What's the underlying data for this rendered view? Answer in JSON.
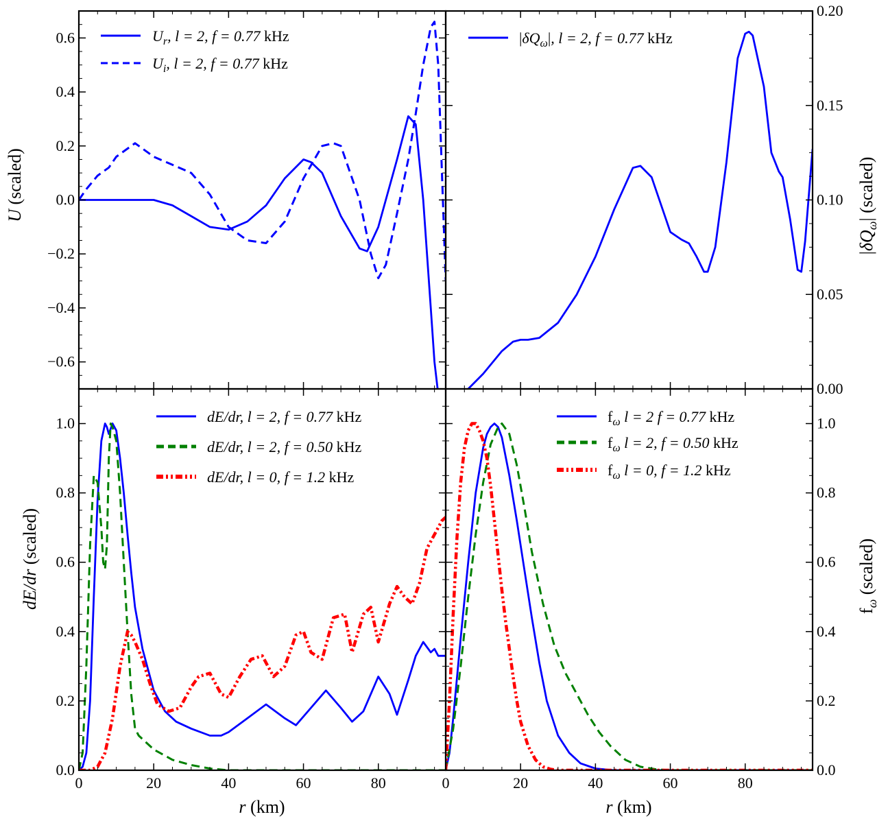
{
  "chart_data": [
    {
      "id": "top-left",
      "type": "line",
      "xlim": [
        0,
        98
      ],
      "ylim": [
        -0.7,
        0.7
      ],
      "xticks": [],
      "yticks": [
        -0.6,
        -0.4,
        -0.2,
        0.0,
        0.2,
        0.4,
        0.6
      ],
      "ytick_labels": [
        "−0.6",
        "−0.4",
        "−0.2",
        "0.0",
        "0.2",
        "0.4",
        "0.6"
      ],
      "ylabel": "U (scaled)",
      "ylabel_side": "left",
      "legend_position": "upper-left",
      "series": [
        {
          "name": "U_r, l = 2, f = 0.77 kHz",
          "color": "#0000ff",
          "dash": "solid",
          "x": [
            0,
            5,
            10,
            15,
            20,
            25,
            30,
            35,
            40,
            45,
            50,
            55,
            60,
            62,
            65,
            70,
            75,
            77,
            80,
            85,
            88,
            90,
            92,
            94,
            95,
            96
          ],
          "y": [
            0.0,
            0.0,
            0.0,
            0.0,
            0.0,
            -0.02,
            -0.06,
            -0.1,
            -0.11,
            -0.08,
            -0.02,
            0.08,
            0.15,
            0.14,
            0.1,
            -0.06,
            -0.18,
            -0.19,
            -0.1,
            0.15,
            0.31,
            0.28,
            0.0,
            -0.4,
            -0.6,
            -0.72
          ]
        },
        {
          "name": "U_i, l = 2, f = 0.77 kHz",
          "color": "#0000ff",
          "dash": "dashed",
          "x": [
            0,
            2,
            5,
            8,
            10,
            15,
            20,
            25,
            30,
            35,
            40,
            45,
            50,
            55,
            60,
            65,
            68,
            70,
            75,
            78,
            80,
            82,
            85,
            88,
            90,
            92,
            94,
            95,
            96,
            97,
            98
          ],
          "y": [
            0.0,
            0.04,
            0.09,
            0.12,
            0.16,
            0.21,
            0.16,
            0.13,
            0.1,
            0.02,
            -0.1,
            -0.15,
            -0.16,
            -0.08,
            0.08,
            0.2,
            0.21,
            0.2,
            0.0,
            -0.2,
            -0.29,
            -0.24,
            -0.05,
            0.15,
            0.32,
            0.5,
            0.64,
            0.66,
            0.5,
            0.1,
            -0.3
          ]
        }
      ]
    },
    {
      "id": "top-right",
      "type": "line",
      "xlim": [
        0,
        98
      ],
      "ylim": [
        0.0,
        0.2
      ],
      "xticks": [],
      "yticks": [
        0.0,
        0.05,
        0.1,
        0.15,
        0.2
      ],
      "ytick_labels": [
        "0.00",
        "0.05",
        "0.10",
        "0.15",
        "0.20"
      ],
      "ylabel": "|δQω| (scaled)",
      "ylabel_side": "right",
      "legend_position": "upper-left",
      "series": [
        {
          "name": "|δQω|, l = 2, f = 0.77 kHz",
          "color": "#0000ff",
          "dash": "solid",
          "x": [
            6,
            10,
            15,
            18,
            20,
            22,
            25,
            30,
            35,
            40,
            45,
            50,
            52,
            55,
            60,
            63,
            65,
            67,
            69,
            70,
            72,
            75,
            78,
            80,
            81,
            82,
            85,
            87,
            89,
            90,
            92,
            94,
            95,
            96,
            98
          ],
          "y": [
            0.0,
            0.008,
            0.02,
            0.025,
            0.026,
            0.026,
            0.027,
            0.035,
            0.05,
            0.07,
            0.095,
            0.117,
            0.118,
            0.112,
            0.083,
            0.079,
            0.077,
            0.07,
            0.062,
            0.062,
            0.075,
            0.12,
            0.175,
            0.188,
            0.189,
            0.187,
            0.16,
            0.125,
            0.115,
            0.112,
            0.09,
            0.063,
            0.062,
            0.078,
            0.127
          ]
        }
      ]
    },
    {
      "id": "bottom-left",
      "type": "line",
      "xlim": [
        0,
        98
      ],
      "ylim": [
        0.0,
        1.1
      ],
      "xticks": [
        0,
        20,
        40,
        60,
        80
      ],
      "xtick_labels": [
        "0",
        "20",
        "40",
        "60",
        "80"
      ],
      "yticks": [
        0.0,
        0.2,
        0.4,
        0.6,
        0.8,
        1.0
      ],
      "ytick_labels": [
        "0.0",
        "0.2",
        "0.4",
        "0.6",
        "0.8",
        "1.0"
      ],
      "xlabel": "r (km)",
      "ylabel": "dE/dr (scaled)",
      "ylabel_side": "left",
      "legend_position": "upper-right",
      "series": [
        {
          "name": "dE/dr, l = 2, f = 0.77 kHz",
          "color": "#0000ff",
          "dash": "solid",
          "x": [
            0,
            1,
            2,
            3,
            4,
            5,
            6,
            7,
            7.5,
            8,
            9,
            10,
            11,
            12,
            13,
            14,
            15,
            17,
            20,
            23,
            26,
            30,
            35,
            38,
            40,
            45,
            50,
            55,
            58,
            62,
            66,
            70,
            73,
            76,
            80,
            83,
            85,
            88,
            90,
            92,
            94,
            95,
            96,
            98
          ],
          "y": [
            0.0,
            0.01,
            0.05,
            0.2,
            0.5,
            0.78,
            0.95,
            1.0,
            0.99,
            0.97,
            1.0,
            0.98,
            0.9,
            0.8,
            0.68,
            0.57,
            0.47,
            0.35,
            0.23,
            0.17,
            0.14,
            0.12,
            0.1,
            0.1,
            0.11,
            0.15,
            0.19,
            0.15,
            0.13,
            0.18,
            0.23,
            0.18,
            0.14,
            0.17,
            0.27,
            0.22,
            0.16,
            0.26,
            0.33,
            0.37,
            0.34,
            0.35,
            0.33,
            0.33
          ]
        },
        {
          "name": "dE/dr, l = 2, f = 0.50 kHz",
          "color": "#008000",
          "dash": "dashed",
          "x": [
            0,
            1,
            2,
            3,
            4,
            5,
            6,
            6.5,
            7,
            7.5,
            8,
            8.5,
            9,
            10,
            11,
            12,
            13,
            14,
            15,
            16,
            18,
            20,
            25,
            30,
            35,
            40,
            50,
            60,
            70,
            80,
            90,
            98
          ],
          "y": [
            0.0,
            0.05,
            0.3,
            0.65,
            0.85,
            0.83,
            0.7,
            0.6,
            0.58,
            0.65,
            0.9,
            1.0,
            0.99,
            0.95,
            0.8,
            0.6,
            0.4,
            0.22,
            0.12,
            0.1,
            0.08,
            0.06,
            0.03,
            0.015,
            0.005,
            0.0,
            0.0,
            0.0,
            0.0,
            0.0,
            0.0,
            0.0
          ]
        },
        {
          "name": "dE/dr, l = 0, f = 1.2 kHz",
          "color": "#ff0000",
          "dash": "dashdot",
          "x": [
            0,
            3,
            5,
            7,
            9,
            11,
            13,
            14,
            15,
            17,
            19,
            21,
            24,
            27,
            30,
            32,
            35,
            38,
            40,
            43,
            46,
            49,
            52,
            55,
            58,
            60,
            62,
            65,
            68,
            71,
            73,
            76,
            78,
            80,
            83,
            85,
            87,
            89,
            91,
            93,
            95,
            97,
            98
          ],
          "y": [
            0.0,
            0.0,
            0.01,
            0.05,
            0.15,
            0.3,
            0.4,
            0.39,
            0.37,
            0.32,
            0.25,
            0.19,
            0.17,
            0.18,
            0.24,
            0.27,
            0.28,
            0.22,
            0.21,
            0.27,
            0.32,
            0.33,
            0.27,
            0.3,
            0.39,
            0.4,
            0.34,
            0.32,
            0.44,
            0.45,
            0.34,
            0.45,
            0.47,
            0.37,
            0.48,
            0.53,
            0.5,
            0.48,
            0.54,
            0.64,
            0.68,
            0.72,
            0.73
          ]
        }
      ]
    },
    {
      "id": "bottom-right",
      "type": "line",
      "xlim": [
        0,
        98
      ],
      "ylim": [
        0.0,
        1.1
      ],
      "xticks": [
        0,
        20,
        40,
        60,
        80
      ],
      "xtick_labels": [
        "0",
        "20",
        "40",
        "60",
        "80"
      ],
      "yticks": [
        0.0,
        0.2,
        0.4,
        0.6,
        0.8,
        1.0
      ],
      "ytick_labels": [
        "0.0",
        "0.2",
        "0.4",
        "0.6",
        "0.8",
        "1.0"
      ],
      "xlabel": "r (km)",
      "ylabel": "fω (scaled)",
      "ylabel_side": "right",
      "legend_position": "upper-right",
      "series": [
        {
          "name": "fω  l = 2 f = 0.77 kHz",
          "color": "#0000ff",
          "dash": "solid",
          "x": [
            0,
            1,
            2,
            4,
            6,
            8,
            10,
            11,
            12,
            13,
            14,
            15,
            17,
            19,
            21,
            23,
            25,
            27,
            30,
            33,
            36,
            40,
            45,
            50,
            60,
            98
          ],
          "y": [
            0.0,
            0.05,
            0.15,
            0.38,
            0.6,
            0.8,
            0.93,
            0.97,
            0.99,
            1.0,
            0.99,
            0.96,
            0.85,
            0.72,
            0.58,
            0.44,
            0.31,
            0.2,
            0.1,
            0.05,
            0.02,
            0.005,
            0.0,
            0.0,
            0.0,
            0.0
          ]
        },
        {
          "name": "fω  l = 2, f = 0.50 kHz",
          "color": "#008000",
          "dash": "dashed",
          "x": [
            0,
            2,
            4,
            6,
            8,
            10,
            12,
            14,
            15,
            17,
            19,
            21,
            23,
            26,
            29,
            32,
            35,
            38,
            41,
            44,
            48,
            52,
            56,
            60,
            98
          ],
          "y": [
            0.0,
            0.12,
            0.3,
            0.5,
            0.68,
            0.83,
            0.94,
            0.99,
            1.0,
            0.97,
            0.88,
            0.76,
            0.63,
            0.48,
            0.36,
            0.28,
            0.22,
            0.16,
            0.11,
            0.07,
            0.03,
            0.01,
            0.003,
            0.0,
            0.0
          ]
        },
        {
          "name": "fω  l = 0, f = 1.2 kHz",
          "color": "#ff0000",
          "dash": "dashdot",
          "x": [
            0,
            1,
            2,
            3,
            4,
            5,
            6,
            7,
            8,
            9,
            10,
            11,
            12,
            13,
            14,
            15,
            16,
            17,
            18,
            19,
            20,
            22,
            24,
            26,
            28,
            30,
            35,
            98
          ],
          "y": [
            0.0,
            0.2,
            0.45,
            0.67,
            0.83,
            0.93,
            0.98,
            1.0,
            1.0,
            0.98,
            0.95,
            0.9,
            0.82,
            0.72,
            0.62,
            0.52,
            0.43,
            0.35,
            0.27,
            0.2,
            0.14,
            0.07,
            0.03,
            0.01,
            0.003,
            0.0,
            0.0,
            0.0
          ]
        }
      ]
    }
  ]
}
